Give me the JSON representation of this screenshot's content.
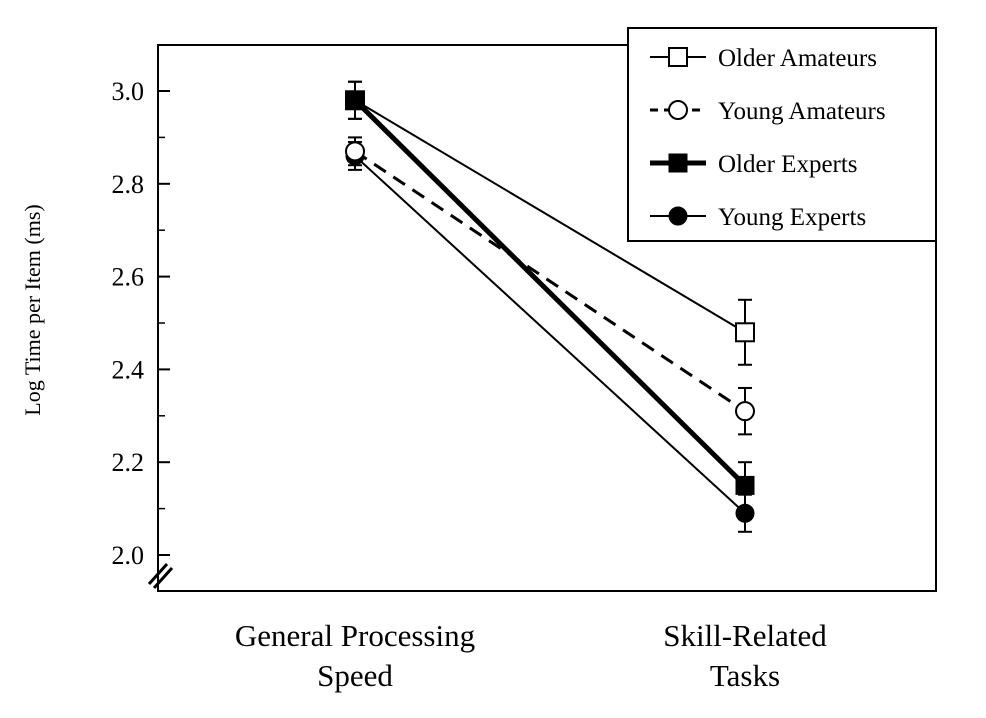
{
  "chart_data": {
    "type": "line",
    "categories": [
      "General Processing Speed",
      "Skill-Related Tasks"
    ],
    "category_label_lines": [
      [
        "General Processing",
        "Speed"
      ],
      [
        "Skill-Related",
        "Tasks"
      ]
    ],
    "ylabel": "Log Time per Item (ms)",
    "xlabel": "",
    "ylim": [
      1.93,
      3.1
    ],
    "yticks": [
      "2.0",
      "2.2",
      "2.4",
      "2.6",
      "2.8",
      "3.0"
    ],
    "axis_break": true,
    "legend_position": "top-right",
    "grid": false,
    "series": [
      {
        "name": "Older Amateurs",
        "values": [
          2.98,
          2.48
        ],
        "error": [
          0.04,
          0.07
        ],
        "marker": "square-open",
        "line": "thin-solid"
      },
      {
        "name": "Young Amateurs",
        "values": [
          2.87,
          2.31
        ],
        "error": [
          0.03,
          0.05
        ],
        "marker": "circle-open",
        "line": "dashed"
      },
      {
        "name": "Older Experts",
        "values": [
          2.98,
          2.15
        ],
        "error": [
          0.04,
          0.05
        ],
        "marker": "square-filled",
        "line": "thick-solid"
      },
      {
        "name": "Young Experts",
        "values": [
          2.86,
          2.09
        ],
        "error": [
          0.03,
          0.04
        ],
        "marker": "circle-filled",
        "line": "thin-solid"
      }
    ]
  }
}
